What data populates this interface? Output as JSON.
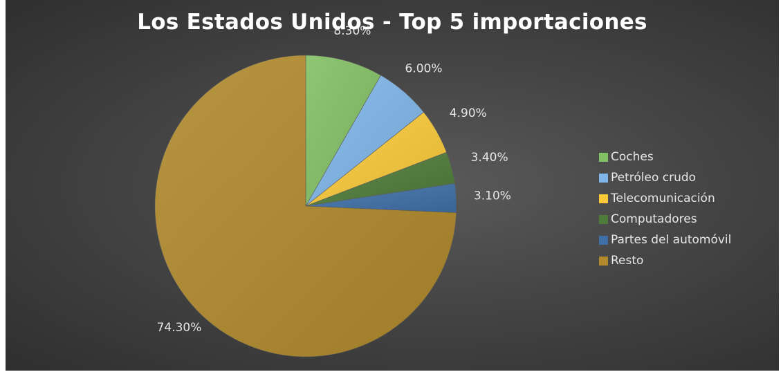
{
  "chart_data": {
    "type": "pie",
    "title": "Los Estados Unidos - Top 5 importaciones",
    "categories": [
      "Coches",
      "Petróleo crudo",
      "Telecomunicación",
      "Computadores",
      "Partes del automóvil",
      "Resto"
    ],
    "values": [
      8.3,
      6.0,
      4.9,
      3.4,
      3.1,
      74.3
    ],
    "data_labels": [
      "8.30%",
      "6.00%",
      "4.90%",
      "3.40%",
      "3.10%",
      "74.30%"
    ],
    "colors": [
      "#82c065",
      "#7fb5e8",
      "#f9c93a",
      "#4f7c3a",
      "#3f6fa6",
      "#b08a2c"
    ],
    "legend_position": "right",
    "start_angle": "12 o'clock",
    "direction": "clockwise"
  }
}
